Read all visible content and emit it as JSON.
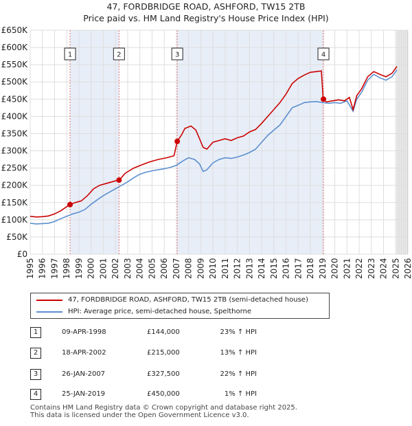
{
  "title_line1": "47, FORDBRIDGE ROAD, ASHFORD, TW15 2TB",
  "title_line2": "Price paid vs. HM Land Registry's House Price Index (HPI)",
  "colors": {
    "property": "#cc0000",
    "hpi": "#5b8fcf",
    "shade": "#e8eef8",
    "marker_line": "#e07070"
  },
  "chart_data": {
    "type": "line",
    "title": "Price paid vs. HM Land Registry's House Price Index (HPI)",
    "y_ticks": [
      "£0",
      "£50K",
      "£100K",
      "£150K",
      "£200K",
      "£250K",
      "£300K",
      "£350K",
      "£400K",
      "£450K",
      "£500K",
      "£550K",
      "£600K",
      "£650K"
    ],
    "y_tick_values": [
      0,
      50000,
      100000,
      150000,
      200000,
      250000,
      300000,
      350000,
      400000,
      450000,
      500000,
      550000,
      600000,
      650000
    ],
    "x_ticks": [
      "1995",
      "1996",
      "1997",
      "1998",
      "1999",
      "2000",
      "2001",
      "2002",
      "2003",
      "2004",
      "2005",
      "2006",
      "2007",
      "2008",
      "2009",
      "2010",
      "2011",
      "2012",
      "2013",
      "2014",
      "2015",
      "2016",
      "2017",
      "2018",
      "2019",
      "2020",
      "2021",
      "2022",
      "2023",
      "2024",
      "2025",
      "2026"
    ],
    "xlim": [
      1995,
      2026
    ],
    "ylim": [
      0,
      650000
    ],
    "series": [
      {
        "name": "47, FORDBRIDGE ROAD, ASHFORD, TW15 2TB (semi-detached house)",
        "color": "#cc0000",
        "points": [
          [
            1995.0,
            110000
          ],
          [
            1995.5,
            108000
          ],
          [
            1996.0,
            109000
          ],
          [
            1996.5,
            111000
          ],
          [
            1997.0,
            117000
          ],
          [
            1997.5,
            126000
          ],
          [
            1998.0,
            138000
          ],
          [
            1998.27,
            144000
          ],
          [
            1998.7,
            150000
          ],
          [
            1999.2,
            155000
          ],
          [
            1999.7,
            170000
          ],
          [
            2000.2,
            190000
          ],
          [
            2000.7,
            200000
          ],
          [
            2001.2,
            205000
          ],
          [
            2001.7,
            210000
          ],
          [
            2002.0,
            213000
          ],
          [
            2002.3,
            215000
          ],
          [
            2002.8,
            235000
          ],
          [
            2003.5,
            250000
          ],
          [
            2004.2,
            260000
          ],
          [
            2004.8,
            268000
          ],
          [
            2005.5,
            275000
          ],
          [
            2006.2,
            280000
          ],
          [
            2006.8,
            286000
          ],
          [
            2007.07,
            327500
          ],
          [
            2007.4,
            345000
          ],
          [
            2007.7,
            365000
          ],
          [
            2008.2,
            372000
          ],
          [
            2008.6,
            360000
          ],
          [
            2008.9,
            335000
          ],
          [
            2009.2,
            310000
          ],
          [
            2009.5,
            305000
          ],
          [
            2010.0,
            325000
          ],
          [
            2010.5,
            330000
          ],
          [
            2011.0,
            335000
          ],
          [
            2011.5,
            330000
          ],
          [
            2012.0,
            338000
          ],
          [
            2012.5,
            343000
          ],
          [
            2013.0,
            355000
          ],
          [
            2013.5,
            362000
          ],
          [
            2014.0,
            380000
          ],
          [
            2014.5,
            400000
          ],
          [
            2015.0,
            420000
          ],
          [
            2015.5,
            440000
          ],
          [
            2016.0,
            465000
          ],
          [
            2016.5,
            495000
          ],
          [
            2017.0,
            510000
          ],
          [
            2017.5,
            520000
          ],
          [
            2018.0,
            528000
          ],
          [
            2018.5,
            530000
          ],
          [
            2018.9,
            532000
          ],
          [
            2019.05,
            450000
          ],
          [
            2019.3,
            442000
          ],
          [
            2019.8,
            445000
          ],
          [
            2020.3,
            448000
          ],
          [
            2020.8,
            445000
          ],
          [
            2021.2,
            455000
          ],
          [
            2021.5,
            420000
          ],
          [
            2021.8,
            460000
          ],
          [
            2022.2,
            480000
          ],
          [
            2022.7,
            515000
          ],
          [
            2023.2,
            530000
          ],
          [
            2023.7,
            522000
          ],
          [
            2024.2,
            515000
          ],
          [
            2024.7,
            525000
          ],
          [
            2025.1,
            545000
          ]
        ]
      },
      {
        "name": "HPI: Average price, semi-detached house, Spelthorne",
        "color": "#5b8fcf",
        "points": [
          [
            1995.0,
            90000
          ],
          [
            1995.5,
            88000
          ],
          [
            1996.0,
            89000
          ],
          [
            1996.5,
            90000
          ],
          [
            1997.0,
            95000
          ],
          [
            1997.5,
            103000
          ],
          [
            1998.0,
            110000
          ],
          [
            1998.5,
            117000
          ],
          [
            1999.0,
            122000
          ],
          [
            1999.5,
            130000
          ],
          [
            2000.0,
            145000
          ],
          [
            2000.5,
            158000
          ],
          [
            2001.0,
            170000
          ],
          [
            2001.5,
            180000
          ],
          [
            2002.0,
            190000
          ],
          [
            2002.5,
            200000
          ],
          [
            2003.0,
            210000
          ],
          [
            2003.5,
            222000
          ],
          [
            2004.0,
            232000
          ],
          [
            2004.5,
            238000
          ],
          [
            2005.0,
            242000
          ],
          [
            2005.5,
            245000
          ],
          [
            2006.0,
            248000
          ],
          [
            2006.5,
            252000
          ],
          [
            2007.0,
            258000
          ],
          [
            2007.5,
            270000
          ],
          [
            2008.0,
            280000
          ],
          [
            2008.5,
            275000
          ],
          [
            2008.9,
            262000
          ],
          [
            2009.2,
            240000
          ],
          [
            2009.5,
            245000
          ],
          [
            2010.0,
            265000
          ],
          [
            2010.5,
            275000
          ],
          [
            2011.0,
            280000
          ],
          [
            2011.5,
            278000
          ],
          [
            2012.0,
            282000
          ],
          [
            2012.5,
            288000
          ],
          [
            2013.0,
            295000
          ],
          [
            2013.5,
            305000
          ],
          [
            2014.0,
            325000
          ],
          [
            2014.5,
            345000
          ],
          [
            2015.0,
            360000
          ],
          [
            2015.5,
            375000
          ],
          [
            2016.0,
            400000
          ],
          [
            2016.5,
            425000
          ],
          [
            2017.0,
            432000
          ],
          [
            2017.5,
            440000
          ],
          [
            2018.0,
            442000
          ],
          [
            2018.5,
            443000
          ],
          [
            2019.0,
            440000
          ],
          [
            2019.5,
            438000
          ],
          [
            2020.0,
            440000
          ],
          [
            2020.5,
            438000
          ],
          [
            2021.0,
            445000
          ],
          [
            2021.5,
            415000
          ],
          [
            2021.8,
            450000
          ],
          [
            2022.2,
            470000
          ],
          [
            2022.7,
            505000
          ],
          [
            2023.2,
            522000
          ],
          [
            2023.7,
            512000
          ],
          [
            2024.2,
            505000
          ],
          [
            2024.7,
            515000
          ],
          [
            2025.1,
            535000
          ]
        ]
      }
    ],
    "sales": [
      {
        "num": "1",
        "x": 1998.27,
        "price_value": 144000
      },
      {
        "num": "2",
        "x": 2002.29,
        "price_value": 215000
      },
      {
        "num": "3",
        "x": 2007.07,
        "price_value": 327500
      },
      {
        "num": "4",
        "x": 2019.07,
        "price_value": 450000
      }
    ],
    "shaded_spans": [
      [
        1998.27,
        2002.29
      ],
      [
        2007.07,
        2019.07
      ],
      [
        2025.1,
        2026
      ]
    ]
  },
  "legend": {
    "property_label": "47, FORDBRIDGE ROAD, ASHFORD, TW15 2TB (semi-detached house)",
    "hpi_label": "HPI: Average price, semi-detached house, Spelthorne"
  },
  "transactions": [
    {
      "num": "1",
      "date": "09-APR-1998",
      "price": "£144,000",
      "hpi": "23% ↑ HPI"
    },
    {
      "num": "2",
      "date": "18-APR-2002",
      "price": "£215,000",
      "hpi": "13% ↑ HPI"
    },
    {
      "num": "3",
      "date": "26-JAN-2007",
      "price": "£327,500",
      "hpi": "22% ↑ HPI"
    },
    {
      "num": "4",
      "date": "25-JAN-2019",
      "price": "£450,000",
      "hpi": "1% ↑ HPI"
    }
  ],
  "footer": {
    "line1": "Contains HM Land Registry data © Crown copyright and database right 2025.",
    "line2": "This data is licensed under the Open Government Licence v3.0."
  }
}
